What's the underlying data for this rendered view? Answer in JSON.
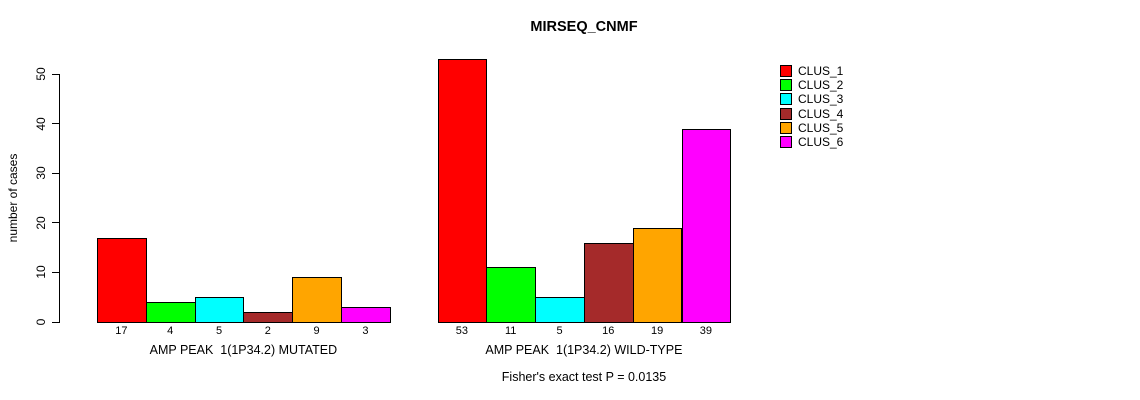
{
  "chart_data": {
    "type": "bar",
    "title": "MIRSEQ_CNMF",
    "ylabel": "number of cases",
    "yticks": [
      0,
      10,
      20,
      30,
      40,
      50
    ],
    "ylim": [
      0,
      53
    ],
    "grid": false,
    "legend_position": "top-right",
    "bar_border_color": "#000000",
    "clusters": [
      {
        "name": "CLUS_1",
        "color": "#FF0000"
      },
      {
        "name": "CLUS_2",
        "color": "#00FF00"
      },
      {
        "name": "CLUS_3",
        "color": "#00FFFF"
      },
      {
        "name": "CLUS_4",
        "color": "#A52A2A"
      },
      {
        "name": "CLUS_5",
        "color": "#FFA500"
      },
      {
        "name": "CLUS_6",
        "color": "#FF00FF"
      }
    ],
    "groups": [
      {
        "label": "AMP PEAK  1(1P34.2) MUTATED",
        "values": [
          17,
          4,
          5,
          2,
          9,
          3
        ]
      },
      {
        "label": "AMP PEAK  1(1P34.2) WILD-TYPE",
        "values": [
          53,
          11,
          5,
          16,
          19,
          39
        ]
      }
    ],
    "annotation": "Fisher's exact test P = 0.0135"
  }
}
